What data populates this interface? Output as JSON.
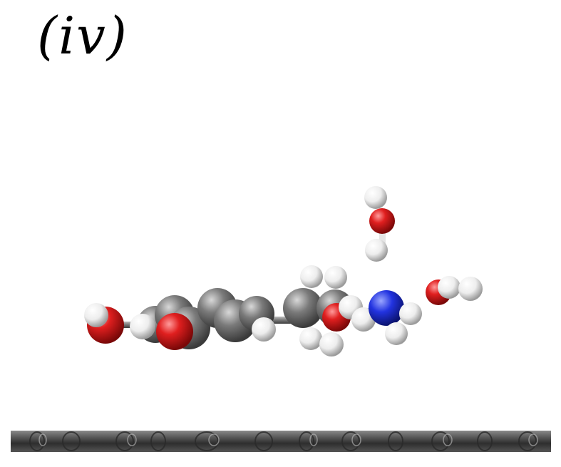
{
  "panel": {
    "label": "(iv)"
  },
  "colors": {
    "background": "#ffffff",
    "carbon": "#6e6e6e",
    "oxygen": "#d91a1a",
    "hydrogen": "#f2f2f2",
    "nitrogen": "#1f2fd6",
    "surface": "#4a4a4a"
  },
  "legend_icons": [
    "carbon-atom",
    "oxygen-atom",
    "hydrogen-atom",
    "nitrogen-atom"
  ]
}
